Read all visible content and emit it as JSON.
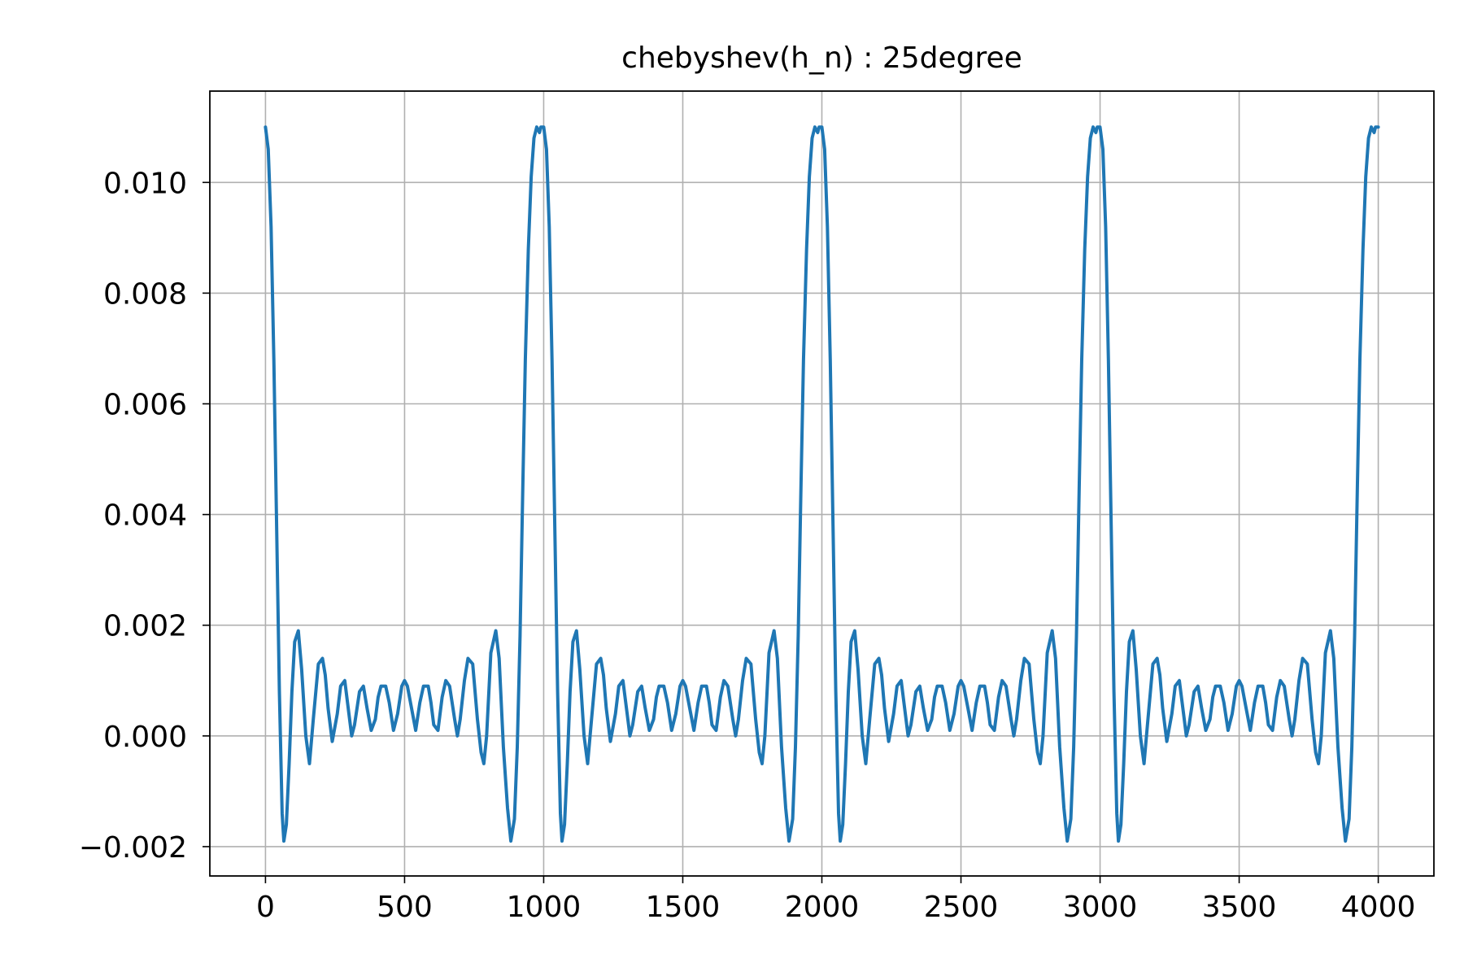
{
  "chart_data": {
    "type": "line",
    "title": "chebyshev(h_n) : 25degree",
    "xlabel": "",
    "ylabel": "",
    "xlim": [
      -200,
      4200
    ],
    "ylim": [
      -0.00253,
      0.01165
    ],
    "grid": true,
    "xticks": [
      0,
      500,
      1000,
      1500,
      2000,
      2500,
      3000,
      3500,
      4000
    ],
    "xtick_labels": [
      "0",
      "500",
      "1000",
      "1500",
      "2000",
      "2500",
      "3000",
      "3500",
      "4000"
    ],
    "yticks": [
      -0.002,
      0.0,
      0.002,
      0.004,
      0.006,
      0.008,
      0.01
    ],
    "ytick_labels": [
      "−0.002",
      "0.000",
      "0.002",
      "0.004",
      "0.006",
      "0.008",
      "0.010"
    ],
    "series": [
      {
        "color": "#1f77b4",
        "period": 1000,
        "x": [
          0,
          10,
          20,
          30,
          40,
          50,
          60,
          66,
          75,
          85,
          95,
          105,
          118,
          130,
          145,
          158,
          172,
          190,
          205,
          215,
          225,
          240,
          258,
          270,
          285,
          300,
          310,
          320,
          338,
          352,
          365,
          380,
          395,
          405,
          415,
          432,
          445,
          460,
          475,
          490,
          500,
          510,
          525,
          540,
          555,
          568,
          585,
          595,
          605,
          620,
          635,
          648,
          662,
          680,
          690,
          700,
          715,
          728,
          745,
          762,
          775,
          785,
          795,
          810,
          828,
          840,
          855,
          870,
          882,
          895,
          905,
          915,
          925,
          934,
          945,
          955,
          965,
          975,
          985,
          990,
          1000
        ],
        "y": [
          0.011,
          0.0106,
          0.0092,
          0.0068,
          0.0038,
          0.0008,
          -0.0014,
          -0.0019,
          -0.0016,
          -0.0005,
          0.0008,
          0.0017,
          0.0019,
          0.0012,
          0.0,
          -0.0005,
          0.0003,
          0.0013,
          0.0014,
          0.0011,
          0.0005,
          -0.0001,
          0.0004,
          0.0009,
          0.001,
          0.0004,
          0.0,
          0.0002,
          0.0008,
          0.0009,
          0.0005,
          0.0001,
          0.0003,
          0.0007,
          0.0009,
          0.0009,
          0.0006,
          0.0001,
          0.0004,
          0.0009,
          0.001,
          0.0009,
          0.0005,
          0.0001,
          0.0006,
          0.0009,
          0.0009,
          0.0006,
          0.0002,
          0.0001,
          0.0007,
          0.001,
          0.0009,
          0.0003,
          0.0,
          0.0003,
          0.001,
          0.0014,
          0.0013,
          0.0003,
          -0.0003,
          -0.0005,
          0.0,
          0.0015,
          0.0019,
          0.0014,
          -0.0002,
          -0.0013,
          -0.0019,
          -0.0015,
          -0.0002,
          0.0018,
          0.0045,
          0.0068,
          0.0088,
          0.0101,
          0.0108,
          0.011,
          0.0109,
          0.011,
          0.011
        ]
      }
    ]
  }
}
